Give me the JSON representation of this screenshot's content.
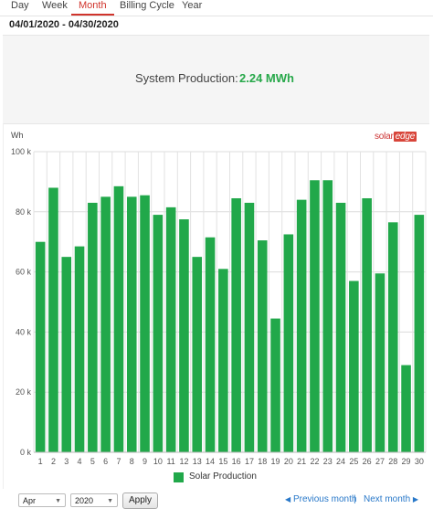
{
  "tabs": [
    {
      "label": "Day",
      "active": false
    },
    {
      "label": "Week",
      "active": false
    },
    {
      "label": "Month",
      "active": true
    },
    {
      "label": "Billing Cycle",
      "active": false
    },
    {
      "label": "Year",
      "active": false
    }
  ],
  "date_range": "04/01/2020 - 04/30/2020",
  "production": {
    "label": "System Production:",
    "value": "2.24 MWh"
  },
  "chart_unit": "Wh",
  "logo": {
    "text_solar": "solar",
    "text_edge": "edge"
  },
  "colors": {
    "bar": "#21a84a",
    "active_tab": "#d0342c",
    "link": "#2878c9",
    "value": "#27a84a"
  },
  "chart_data": {
    "type": "bar",
    "title": "",
    "ylabel": "Wh",
    "xlabel": "",
    "ylim": [
      0,
      100000
    ],
    "yticks": [
      "0 k",
      "20 k",
      "40 k",
      "60 k",
      "80 k",
      "100 k"
    ],
    "grid": true,
    "legend_position": "bottom",
    "categories": [
      "1",
      "2",
      "3",
      "4",
      "5",
      "6",
      "7",
      "8",
      "9",
      "10",
      "11",
      "12",
      "13",
      "14",
      "15",
      "16",
      "17",
      "18",
      "19",
      "20",
      "21",
      "22",
      "23",
      "24",
      "25",
      "26",
      "27",
      "28",
      "29",
      "30"
    ],
    "series": [
      {
        "name": "Solar Production",
        "values": [
          70000,
          88000,
          65000,
          68500,
          83000,
          85000,
          88500,
          85000,
          85500,
          79000,
          81500,
          77500,
          65000,
          71500,
          61000,
          84500,
          83000,
          70500,
          44500,
          72500,
          84000,
          90500,
          90500,
          83000,
          57000,
          84500,
          59500,
          76500,
          29000,
          79000
        ]
      }
    ]
  },
  "controls": {
    "month": "Apr",
    "year": "2020",
    "apply": "Apply",
    "prev": "Previous month",
    "next": "Next month",
    "separator": "|"
  }
}
